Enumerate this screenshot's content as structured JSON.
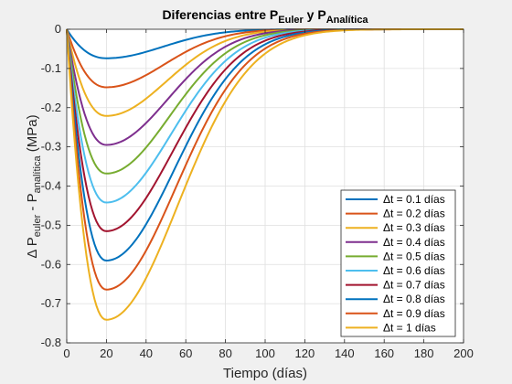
{
  "chart_data": {
    "type": "line",
    "title": {
      "main": "Diferencias entre P",
      "sub1": "Euler",
      "mid": " y P",
      "sub2": "Analítica"
    },
    "xlabel": "Tiempo (días)",
    "ylabel": {
      "pre": "Δ P",
      "sub1": "euler",
      "mid": " - P",
      "sub2": "analítica",
      "post": " (MPa)"
    },
    "xlim": [
      0,
      200
    ],
    "ylim": [
      -0.8,
      0
    ],
    "xticks": [
      0,
      20,
      40,
      60,
      80,
      100,
      120,
      140,
      160,
      180,
      200
    ],
    "yticks": [
      0,
      -0.1,
      -0.2,
      -0.3,
      -0.4,
      -0.5,
      -0.6,
      -0.7,
      -0.8
    ],
    "xtick_labels": [
      "0",
      "20",
      "40",
      "60",
      "80",
      "100",
      "120",
      "140",
      "160",
      "180",
      "200"
    ],
    "ytick_labels": [
      "0",
      "-0.1",
      "-0.2",
      "-0.3",
      "-0.4",
      "-0.5",
      "-0.6",
      "-0.7",
      "-0.8"
    ],
    "grid": true,
    "legend_position": "bottom-right",
    "legend_prefix": "Δt = ",
    "x_min_at": 20,
    "series": [
      {
        "name": "0.1 días",
        "peak": -0.074,
        "color": "#0072BD",
        "tail_scale": 1.0
      },
      {
        "name": "0.2 días",
        "peak": -0.148,
        "color": "#D95319",
        "tail_scale": 1.03
      },
      {
        "name": "0.3 días",
        "peak": -0.221,
        "color": "#EDB120",
        "tail_scale": 1.06
      },
      {
        "name": "0.4 días",
        "peak": -0.295,
        "color": "#7E2F8E",
        "tail_scale": 1.09
      },
      {
        "name": "0.5 días",
        "peak": -0.368,
        "color": "#77AC30",
        "tail_scale": 1.12
      },
      {
        "name": "0.6 días",
        "peak": -0.442,
        "color": "#4DBEEE",
        "tail_scale": 1.15
      },
      {
        "name": "0.7 días",
        "peak": -0.515,
        "color": "#A2142F",
        "tail_scale": 1.18
      },
      {
        "name": "0.8 días",
        "peak": -0.59,
        "color": "#0072BD",
        "tail_scale": 1.21
      },
      {
        "name": "0.9 días",
        "peak": -0.664,
        "color": "#D95319",
        "tail_scale": 1.24
      },
      {
        "name": "1 días",
        "peak": -0.741,
        "color": "#EDB120",
        "tail_scale": 1.27
      }
    ]
  }
}
